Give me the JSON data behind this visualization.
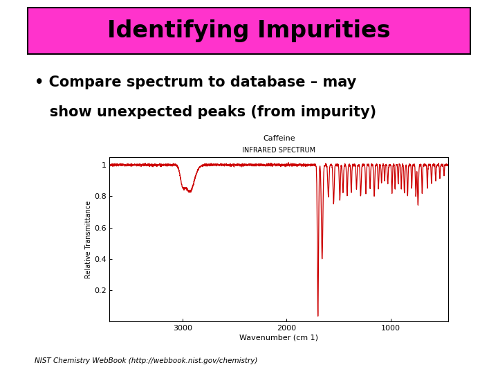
{
  "title": "Identifying Impurities",
  "title_bg_color": "#FF33CC",
  "title_border_color": "#000000",
  "title_text_color": "#000000",
  "bullet_line1": "• Compare spectrum to database – may",
  "bullet_line2": "   show unexpected peaks (from impurity)",
  "spectrum_title1": "Caffeine",
  "spectrum_title2": "INFRARED SPECTRUM",
  "xlabel": "Wavenumber (cm 1)",
  "ylabel": "Relative Transmittance",
  "footnote": "NIST Chemistry WebBook (http://webbook.nist.gov/chemistry)",
  "bg_color": "#FFFFFF",
  "line_color": "#CC0000",
  "xmin": 3700,
  "xmax": 450,
  "ymin": 0.0,
  "ymax": 1.05,
  "yticks": [
    0.2,
    0.4,
    0.6,
    0.8,
    1.0
  ],
  "xticks": [
    3000,
    2000,
    1000
  ]
}
